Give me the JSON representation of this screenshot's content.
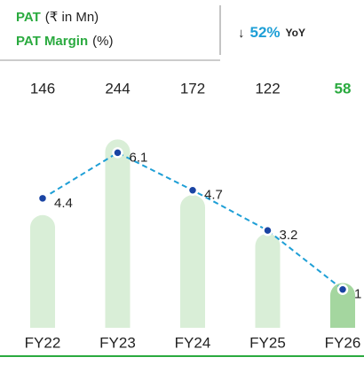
{
  "header": {
    "bar_label": "PAT",
    "bar_unit": "(₹ in Mn)",
    "line_label": "PAT Margin",
    "line_unit": "(%)",
    "change_arrow": "↓",
    "change_value": "52%",
    "change_suffix": "YoY"
  },
  "chart_data": {
    "type": "bar_line",
    "categories": [
      "FY22",
      "FY23",
      "FY24",
      "FY25",
      "FY26"
    ],
    "series": [
      {
        "name": "PAT",
        "type": "bar",
        "color": "#d9eed7",
        "highlight_color": "#a4d69f",
        "values": [
          146,
          244,
          172,
          122,
          58
        ]
      },
      {
        "name": "PAT Margin",
        "type": "line",
        "axis": "y2",
        "color": "#1e9fd6",
        "marker_color": "#1a44a3",
        "values": [
          4.4,
          6.1,
          4.7,
          3.2,
          1
        ]
      }
    ],
    "ylim": [
      0,
      280
    ],
    "y2lim": [
      0,
      7.5
    ]
  }
}
